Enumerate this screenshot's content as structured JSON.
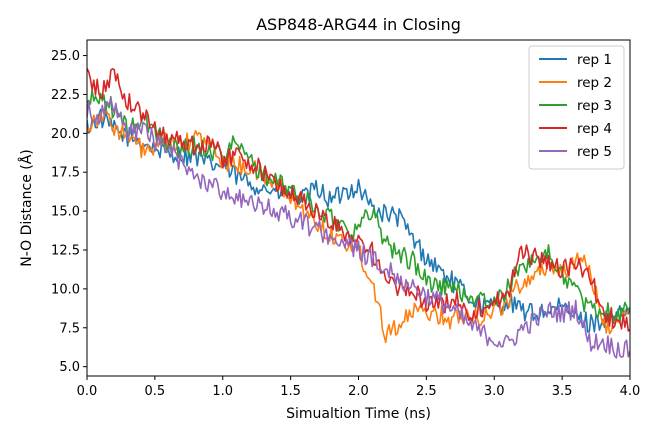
{
  "chart_data": {
    "type": "line",
    "title": "ASP848-ARG44 in Closing",
    "xlabel": "Simualtion Time (ns)",
    "ylabel": "N-O Distance (Å)",
    "xlim": [
      0.0,
      4.0
    ],
    "ylim": [
      4.4,
      26.0
    ],
    "xticks": [
      "0.0",
      "0.5",
      "1.0",
      "1.5",
      "2.0",
      "2.5",
      "3.0",
      "3.5",
      "4.0"
    ],
    "yticks": [
      "5.0",
      "7.5",
      "10.0",
      "12.5",
      "15.0",
      "17.5",
      "20.0",
      "22.5",
      "25.0"
    ],
    "grid": false,
    "legend_position": "top-right",
    "x": [
      0.0,
      0.1,
      0.2,
      0.3,
      0.4,
      0.5,
      0.6,
      0.7,
      0.8,
      0.9,
      1.0,
      1.1,
      1.2,
      1.3,
      1.4,
      1.5,
      1.6,
      1.7,
      1.8,
      1.9,
      2.0,
      2.1,
      2.2,
      2.3,
      2.4,
      2.5,
      2.6,
      2.7,
      2.8,
      2.9,
      3.0,
      3.1,
      3.2,
      3.3,
      3.4,
      3.5,
      3.6,
      3.7,
      3.8,
      3.9,
      4.0
    ],
    "series": [
      {
        "name": "rep 1",
        "color": "#1f77b4",
        "values": [
          20.4,
          21.0,
          20.2,
          19.8,
          19.5,
          19.0,
          18.8,
          18.6,
          18.5,
          18.0,
          17.9,
          17.2,
          16.8,
          16.5,
          16.2,
          16.0,
          15.8,
          16.5,
          15.6,
          16.3,
          16.6,
          15.2,
          14.8,
          14.6,
          13.2,
          12.0,
          11.2,
          10.4,
          9.6,
          9.0,
          8.8,
          9.2,
          8.6,
          8.4,
          8.6,
          8.8,
          8.2,
          7.8,
          8.0,
          8.1,
          8.8
        ]
      },
      {
        "name": "rep 2",
        "color": "#ff7f0e",
        "values": [
          20.4,
          21.3,
          20.5,
          19.7,
          19.0,
          18.8,
          19.6,
          19.1,
          19.8,
          19.3,
          18.2,
          18.0,
          17.8,
          17.2,
          16.8,
          15.8,
          15.0,
          14.2,
          13.5,
          13.0,
          12.5,
          10.5,
          7.2,
          7.8,
          8.4,
          8.6,
          8.3,
          8.0,
          8.5,
          8.2,
          8.6,
          9.2,
          10.4,
          11.0,
          11.5,
          11.2,
          11.7,
          11.4,
          7.8,
          7.6,
          8.8
        ]
      },
      {
        "name": "rep 3",
        "color": "#2ca02c",
        "values": [
          22.0,
          22.4,
          21.5,
          20.2,
          20.8,
          20.2,
          19.3,
          19.0,
          19.2,
          18.9,
          18.7,
          19.4,
          18.2,
          17.4,
          16.8,
          16.4,
          15.8,
          15.1,
          14.6,
          14.0,
          13.8,
          15.2,
          13.0,
          12.2,
          11.8,
          10.5,
          10.2,
          10.0,
          9.6,
          9.3,
          9.0,
          10.0,
          11.5,
          12.0,
          12.2,
          11.0,
          10.0,
          8.6,
          8.8,
          8.2,
          8.8
        ]
      },
      {
        "name": "rep 4",
        "color": "#d62728",
        "values": [
          23.8,
          22.5,
          24.0,
          22.0,
          21.3,
          20.3,
          19.8,
          19.5,
          19.2,
          19.5,
          18.4,
          18.6,
          18.2,
          17.5,
          16.6,
          16.2,
          15.6,
          14.8,
          14.2,
          13.6,
          13.2,
          12.4,
          10.4,
          10.0,
          9.8,
          9.2,
          8.8,
          9.6,
          8.4,
          8.8,
          9.2,
          9.6,
          12.4,
          12.1,
          11.7,
          11.2,
          11.5,
          11.0,
          8.4,
          8.0,
          7.4
        ]
      },
      {
        "name": "rep 5",
        "color": "#9467bd",
        "values": [
          21.5,
          21.2,
          21.8,
          19.8,
          20.4,
          19.5,
          19.0,
          18.0,
          17.2,
          16.8,
          16.3,
          16.0,
          15.4,
          15.2,
          15.0,
          14.6,
          14.2,
          13.8,
          13.4,
          12.8,
          12.5,
          11.8,
          11.6,
          10.6,
          10.2,
          9.6,
          9.2,
          8.6,
          7.8,
          7.2,
          6.8,
          6.4,
          7.4,
          8.0,
          8.6,
          8.4,
          8.8,
          6.6,
          6.6,
          6.2,
          6.0
        ]
      }
    ]
  }
}
